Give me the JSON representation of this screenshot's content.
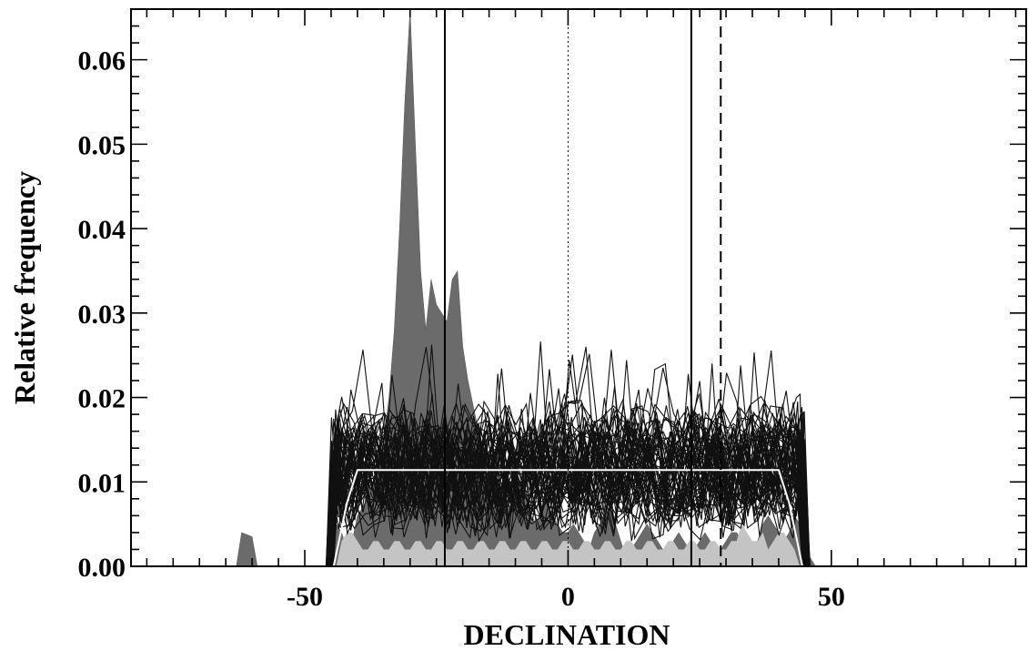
{
  "chart_data": {
    "type": "area",
    "xlabel": "DECLINATION",
    "ylabel": "Relative frequency",
    "xlim": [
      -83,
      87
    ],
    "ylim": [
      0,
      0.066
    ],
    "x_ticks": [
      {
        "value": -50,
        "label": "-50"
      },
      {
        "value": 0,
        "label": "0"
      },
      {
        "value": 50,
        "label": "50"
      }
    ],
    "y_ticks": [
      {
        "value": 0.0,
        "label": "0.00"
      },
      {
        "value": 0.01,
        "label": "0.01"
      },
      {
        "value": 0.02,
        "label": "0.02"
      },
      {
        "value": 0.03,
        "label": "0.03"
      },
      {
        "value": 0.04,
        "label": "0.04"
      },
      {
        "value": 0.05,
        "label": "0.05"
      },
      {
        "value": 0.06,
        "label": "0.06"
      }
    ],
    "grid": false,
    "vertical_lines": [
      {
        "x": -23.4,
        "style": "solid"
      },
      {
        "x": 0,
        "style": "dotted"
      },
      {
        "x": 23.4,
        "style": "solid"
      },
      {
        "x": 29,
        "style": "dashed"
      }
    ],
    "dark_histogram": {
      "x": [
        -63,
        -62,
        -60,
        -59,
        -46,
        -44,
        -43,
        -42,
        -41,
        -40,
        -39,
        -38,
        -37,
        -36,
        -35,
        -34,
        -33,
        -32,
        -31,
        -30,
        -29,
        -28,
        -27,
        -26,
        -25,
        -24,
        -23,
        -22,
        -21,
        -20,
        -19,
        -18,
        -17,
        -16,
        -15,
        -14,
        -13,
        -12,
        -11,
        -10,
        -9,
        -8,
        -7,
        -6,
        -5,
        -4,
        -3,
        -2,
        -1,
        0,
        1,
        2,
        3,
        4,
        5,
        6,
        7,
        8,
        9,
        10,
        11,
        12,
        13,
        14,
        15,
        16,
        17,
        18,
        19,
        20,
        21,
        22,
        23,
        24,
        25,
        26,
        27,
        28,
        29,
        30,
        31,
        32,
        33,
        34,
        35,
        36,
        37,
        38,
        39,
        40,
        41,
        42,
        43,
        44,
        45,
        46,
        47
      ],
      "values": [
        0,
        0.004,
        0.0035,
        0,
        0,
        0.005,
        0.004,
        0.002,
        0.003,
        0.006,
        0.007,
        0.008,
        0.01,
        0.012,
        0.015,
        0.02,
        0.028,
        0.04,
        0.055,
        0.066,
        0.05,
        0.035,
        0.028,
        0.034,
        0.031,
        0.03,
        0.029,
        0.034,
        0.035,
        0.026,
        0.022,
        0.019,
        0.016,
        0.014,
        0.012,
        0.01,
        0.009,
        0.008,
        0.007,
        0.008,
        0.009,
        0.008,
        0.006,
        0.005,
        0.007,
        0.008,
        0.006,
        0.005,
        0.004,
        0.004,
        0.005,
        0.004,
        0.003,
        0.002,
        0.004,
        0.005,
        0.006,
        0.007,
        0.005,
        0.003,
        0.001,
        0.002,
        0.003,
        0.004,
        0.005,
        0.004,
        0.003,
        0.002,
        0.002,
        0.003,
        0.004,
        0.003,
        0.002,
        0.002,
        0.003,
        0.004,
        0.003,
        0.002,
        0.002,
        0.003,
        0.004,
        0.004,
        0.003,
        0.002,
        0.002,
        0.003,
        0.005,
        0.006,
        0.005,
        0.004,
        0.003,
        0.004,
        0.006,
        0.005,
        0.003,
        0.001,
        0
      ]
    },
    "light_histogram": {
      "x": [
        -44,
        -43,
        -42,
        -41,
        -40,
        -39,
        -38,
        -37,
        -36,
        -35,
        -34,
        -33,
        -32,
        -31,
        -30,
        -29,
        -28,
        -27,
        -26,
        -25,
        -24,
        -23,
        -22,
        -21,
        -20,
        -19,
        -18,
        -17,
        -16,
        -15,
        -14,
        -13,
        -12,
        -11,
        -10,
        -9,
        -8,
        -7,
        -6,
        -5,
        -4,
        -3,
        -2,
        -1,
        0,
        1,
        2,
        3,
        4,
        5,
        6,
        7,
        8,
        9,
        10,
        11,
        12,
        13,
        14,
        15,
        16,
        17,
        18,
        19,
        20,
        21,
        22,
        23,
        24,
        25,
        26,
        27,
        28,
        29,
        30,
        31,
        32,
        33,
        34,
        35,
        36,
        37,
        38,
        39,
        40,
        41,
        42,
        43,
        44
      ],
      "values": [
        0,
        0.003,
        0.004,
        0.004,
        0.003,
        0.002,
        0.002,
        0.003,
        0.003,
        0.002,
        0.002,
        0.003,
        0.003,
        0.002,
        0.002,
        0.003,
        0.003,
        0.002,
        0.002,
        0.003,
        0.003,
        0.002,
        0.002,
        0.003,
        0.003,
        0.002,
        0.002,
        0.003,
        0.003,
        0.002,
        0.002,
        0.003,
        0.003,
        0.002,
        0.002,
        0.003,
        0.003,
        0.002,
        0.002,
        0.003,
        0.003,
        0.002,
        0.002,
        0.003,
        0.003,
        0.002,
        0.002,
        0.003,
        0.003,
        0.002,
        0.002,
        0.003,
        0.003,
        0.002,
        0.002,
        0.003,
        0.003,
        0.002,
        0.002,
        0.003,
        0.003,
        0.002,
        0.002,
        0.003,
        0.003,
        0.002,
        0.002,
        0.003,
        0.003,
        0.002,
        0.002,
        0.003,
        0.003,
        0.002,
        0.002,
        0.003,
        0.003,
        0.005,
        0.004,
        0.003,
        0.003,
        0.004,
        0.002,
        0.003,
        0.004,
        0.004,
        0.003,
        0.002,
        0
      ]
    },
    "simulation_lines": {
      "count": 60,
      "x_range": [
        -46,
        46
      ],
      "typical_level": 0.0115,
      "spread": 0.008,
      "seed": 7
    },
    "white_envelope": {
      "x": [
        -44.5,
        -42,
        -40,
        40,
        42,
        44.5
      ],
      "y": [
        0,
        0.0075,
        0.0114,
        0.0114,
        0.0075,
        0
      ]
    }
  }
}
